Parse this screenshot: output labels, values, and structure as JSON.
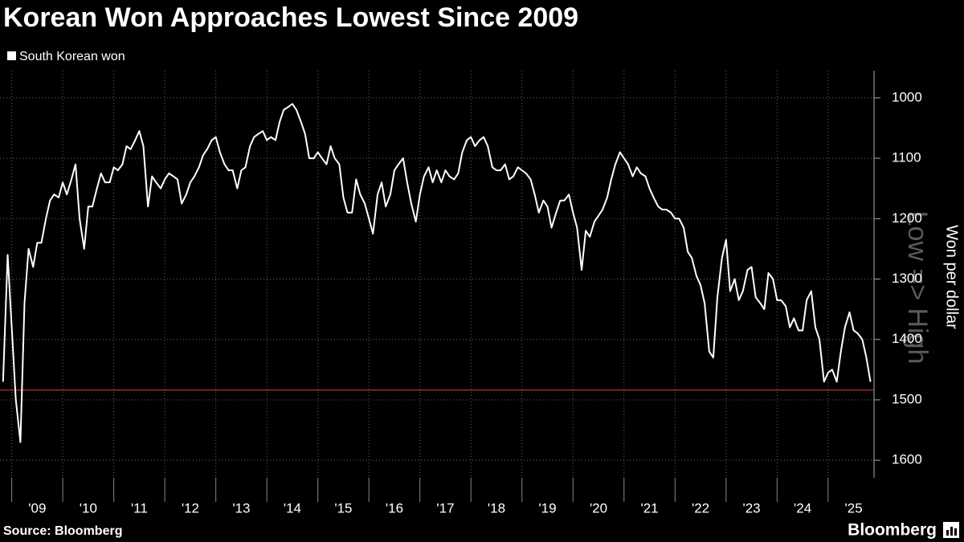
{
  "chart_data": {
    "type": "line",
    "title": "Korean Won Approaches Lowest Since 2009",
    "y_axis_label": "Won per dollar",
    "watermark": "Low => High",
    "source": "Source: Bloomberg",
    "brand": "Bloomberg",
    "inverted": true,
    "grid": true,
    "xlim": [
      2008.77,
      2025.9
    ],
    "ylim": [
      955,
      1629
    ],
    "yticks": [
      1000,
      1100,
      1200,
      1300,
      1400,
      1500,
      1600
    ],
    "xticks": [
      {
        "value": 2009,
        "label": "'09"
      },
      {
        "value": 2010,
        "label": "'10"
      },
      {
        "value": 2011,
        "label": "'11"
      },
      {
        "value": 2012,
        "label": "'12"
      },
      {
        "value": 2013,
        "label": "'13"
      },
      {
        "value": 2014,
        "label": "'14"
      },
      {
        "value": 2015,
        "label": "'15"
      },
      {
        "value": 2016,
        "label": "'16"
      },
      {
        "value": 2017,
        "label": "'17"
      },
      {
        "value": 2018,
        "label": "'18"
      },
      {
        "value": 2019,
        "label": "'19"
      },
      {
        "value": 2020,
        "label": "'20"
      },
      {
        "value": 2021,
        "label": "'21"
      },
      {
        "value": 2022,
        "label": "'22"
      },
      {
        "value": 2023,
        "label": "'23"
      },
      {
        "value": 2024,
        "label": "'24"
      },
      {
        "value": 2025,
        "label": "'25"
      }
    ],
    "reference_line": {
      "value": 1484,
      "color": "#e8413b"
    },
    "series": [
      {
        "name": "South Korean won",
        "color": "#ffffff",
        "x": [
          2008.83,
          2008.92,
          2009,
          2009.08,
          2009.17,
          2009.25,
          2009.33,
          2009.42,
          2009.5,
          2009.58,
          2009.67,
          2009.75,
          2009.83,
          2009.92,
          2010,
          2010.08,
          2010.17,
          2010.25,
          2010.33,
          2010.42,
          2010.5,
          2010.58,
          2010.67,
          2010.75,
          2010.83,
          2010.92,
          2011,
          2011.08,
          2011.17,
          2011.25,
          2011.33,
          2011.42,
          2011.5,
          2011.58,
          2011.67,
          2011.75,
          2011.83,
          2011.92,
          2012,
          2012.08,
          2012.17,
          2012.25,
          2012.33,
          2012.42,
          2012.5,
          2012.58,
          2012.67,
          2012.75,
          2012.83,
          2012.92,
          2013,
          2013.08,
          2013.17,
          2013.25,
          2013.33,
          2013.42,
          2013.5,
          2013.58,
          2013.67,
          2013.75,
          2013.83,
          2013.92,
          2014,
          2014.08,
          2014.17,
          2014.25,
          2014.33,
          2014.42,
          2014.5,
          2014.58,
          2014.67,
          2014.75,
          2014.83,
          2014.92,
          2015,
          2015.08,
          2015.17,
          2015.25,
          2015.33,
          2015.42,
          2015.5,
          2015.58,
          2015.67,
          2015.75,
          2015.83,
          2015.92,
          2016,
          2016.08,
          2016.17,
          2016.25,
          2016.33,
          2016.42,
          2016.5,
          2016.58,
          2016.67,
          2016.75,
          2016.83,
          2016.92,
          2017,
          2017.08,
          2017.17,
          2017.25,
          2017.33,
          2017.42,
          2017.5,
          2017.58,
          2017.67,
          2017.75,
          2017.83,
          2017.92,
          2018,
          2018.08,
          2018.17,
          2018.25,
          2018.33,
          2018.42,
          2018.5,
          2018.58,
          2018.67,
          2018.75,
          2018.83,
          2018.92,
          2019,
          2019.08,
          2019.17,
          2019.25,
          2019.33,
          2019.42,
          2019.5,
          2019.58,
          2019.67,
          2019.75,
          2019.83,
          2019.92,
          2020,
          2020.08,
          2020.17,
          2020.25,
          2020.33,
          2020.42,
          2020.5,
          2020.58,
          2020.67,
          2020.75,
          2020.83,
          2020.92,
          2021,
          2021.08,
          2021.17,
          2021.25,
          2021.33,
          2021.42,
          2021.5,
          2021.58,
          2021.67,
          2021.75,
          2021.83,
          2021.92,
          2022,
          2022.08,
          2022.17,
          2022.25,
          2022.33,
          2022.42,
          2022.5,
          2022.58,
          2022.67,
          2022.75,
          2022.83,
          2022.92,
          2023,
          2023.08,
          2023.17,
          2023.25,
          2023.33,
          2023.42,
          2023.5,
          2023.58,
          2023.67,
          2023.75,
          2023.83,
          2023.92,
          2024,
          2024.08,
          2024.17,
          2024.25,
          2024.33,
          2024.42,
          2024.5,
          2024.58,
          2024.67,
          2024.75,
          2024.83,
          2024.92,
          2025,
          2025.08,
          2025.17,
          2025.25,
          2025.33,
          2025.42,
          2025.5,
          2025.58,
          2025.67,
          2025.75,
          2025.83
        ],
        "values": [
          1470,
          1260,
          1380,
          1500,
          1570,
          1340,
          1250,
          1280,
          1240,
          1240,
          1200,
          1170,
          1160,
          1165,
          1140,
          1160,
          1135,
          1110,
          1200,
          1250,
          1180,
          1180,
          1150,
          1125,
          1140,
          1140,
          1115,
          1120,
          1110,
          1080,
          1085,
          1070,
          1055,
          1080,
          1180,
          1130,
          1140,
          1150,
          1135,
          1125,
          1130,
          1135,
          1175,
          1160,
          1140,
          1130,
          1115,
          1095,
          1085,
          1070,
          1065,
          1090,
          1110,
          1120,
          1120,
          1150,
          1120,
          1115,
          1080,
          1065,
          1060,
          1055,
          1070,
          1065,
          1070,
          1040,
          1020,
          1015,
          1010,
          1020,
          1040,
          1060,
          1100,
          1100,
          1090,
          1100,
          1110,
          1080,
          1100,
          1110,
          1165,
          1190,
          1190,
          1135,
          1160,
          1175,
          1200,
          1225,
          1160,
          1140,
          1180,
          1160,
          1120,
          1110,
          1100,
          1140,
          1175,
          1205,
          1160,
          1130,
          1115,
          1140,
          1120,
          1140,
          1120,
          1130,
          1135,
          1125,
          1090,
          1070,
          1065,
          1080,
          1070,
          1065,
          1080,
          1115,
          1120,
          1120,
          1110,
          1135,
          1130,
          1115,
          1120,
          1125,
          1135,
          1160,
          1190,
          1170,
          1180,
          1215,
          1190,
          1170,
          1170,
          1160,
          1190,
          1215,
          1285,
          1220,
          1230,
          1205,
          1195,
          1185,
          1165,
          1135,
          1110,
          1090,
          1100,
          1110,
          1130,
          1115,
          1125,
          1130,
          1150,
          1165,
          1180,
          1185,
          1185,
          1190,
          1200,
          1200,
          1215,
          1255,
          1265,
          1295,
          1310,
          1340,
          1420,
          1430,
          1330,
          1265,
          1235,
          1320,
          1300,
          1335,
          1320,
          1285,
          1280,
          1330,
          1340,
          1350,
          1290,
          1300,
          1335,
          1335,
          1345,
          1380,
          1365,
          1385,
          1385,
          1335,
          1320,
          1380,
          1400,
          1470,
          1455,
          1450,
          1470,
          1420,
          1380,
          1355,
          1385,
          1390,
          1400,
          1430,
          1470
        ]
      }
    ]
  }
}
